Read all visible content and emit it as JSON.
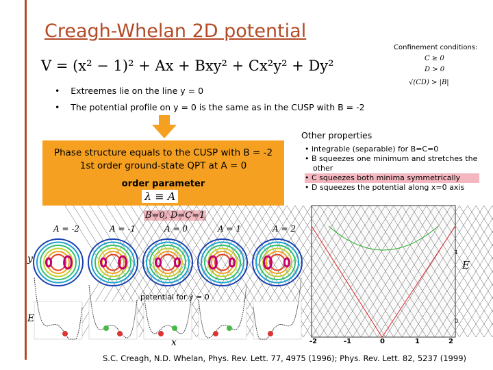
{
  "title": "Creagh-Whelan 2D potential",
  "confinement": {
    "heading": "Confinement conditions:",
    "conditions": [
      "C ≥ 0",
      "D > 0",
      "√(CD) > |B|"
    ]
  },
  "formula": "V = (x² − 1)² + Ax + Bxy² + Cx²y² + Dy²",
  "bullets": [
    "Extreemes lie on the line y = 0",
    "The potential profile on y = 0 is the same as in the CUSP with B = -2"
  ],
  "box": {
    "line1": "Phase structure equals to the CUSP with B = -2",
    "line2": "1st order ground-state QPT at A = 0",
    "order_label": "order parameter",
    "order_formula": "λ ≡ A"
  },
  "other": {
    "heading": "Other properties",
    "items": [
      "integrable (separable) for B=C=0",
      "B squeezes one minimum and stretches the other",
      "C squeezes both minima symmetrically",
      "D squeezes the potential along x=0 axis"
    ]
  },
  "parameters": "B=0, D=C=1",
  "a_labels": [
    "A = -2",
    "A = -1",
    "A = 0",
    "A = 1",
    "A = 2"
  ],
  "axis_y": "y",
  "axis_e_right": "E",
  "potential_caption": "potential for y = 0",
  "axis_e_left": "E",
  "axis_x": "x",
  "spectrum": {
    "x_ticks": [
      "-2",
      "-1",
      "0",
      "1",
      "2"
    ],
    "y_ticks": [
      "1",
      "0"
    ]
  },
  "citation": "S.C. Creagh, N.D. Whelan, Phys. Rev. Lett. 77, 4975 (1996); Phys. Rev. Lett. 82, 5237 (1999)"
}
